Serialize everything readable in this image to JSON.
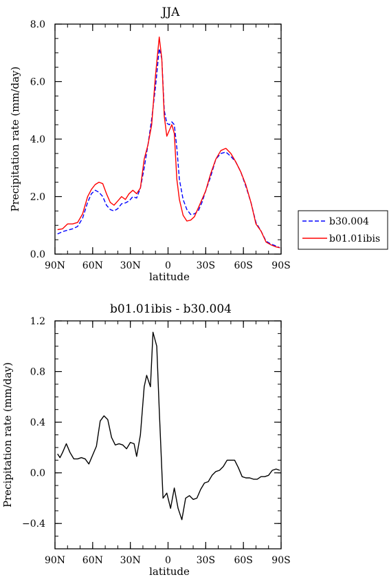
{
  "chart_data": [
    {
      "type": "line",
      "title": "JJA",
      "xlabel": "latitude",
      "ylabel": "Precipitation rate (mm/day)",
      "xlim": [
        90,
        -90
      ],
      "ylim": [
        0,
        8
      ],
      "x_ticks": [
        {
          "value": 90,
          "label": "90N"
        },
        {
          "value": 60,
          "label": "60N"
        },
        {
          "value": 30,
          "label": "30N"
        },
        {
          "value": 0,
          "label": "0"
        },
        {
          "value": -30,
          "label": "30S"
        },
        {
          "value": -60,
          "label": "60S"
        },
        {
          "value": -90,
          "label": "90S"
        }
      ],
      "y_ticks": [
        {
          "value": 0,
          "label": "0.0"
        },
        {
          "value": 2,
          "label": "2.0"
        },
        {
          "value": 4,
          "label": "4.0"
        },
        {
          "value": 6,
          "label": "6.0"
        },
        {
          "value": 8,
          "label": "8.0"
        }
      ],
      "legend": "right",
      "series": [
        {
          "name": "b30.004",
          "color": "#0000ff",
          "style": "dashed",
          "points": [
            [
              88,
              0.7
            ],
            [
              84,
              0.78
            ],
            [
              80,
              0.83
            ],
            [
              76,
              0.88
            ],
            [
              72,
              0.96
            ],
            [
              68,
              1.25
            ],
            [
              64,
              1.8
            ],
            [
              61,
              2.1
            ],
            [
              58,
              2.22
            ],
            [
              55,
              2.15
            ],
            [
              52,
              2.0
            ],
            [
              49,
              1.7
            ],
            [
              46,
              1.55
            ],
            [
              43,
              1.5
            ],
            [
              40,
              1.58
            ],
            [
              37,
              1.75
            ],
            [
              34,
              1.78
            ],
            [
              31,
              1.85
            ],
            [
              28,
              2.0
            ],
            [
              25,
              1.95
            ],
            [
              22,
              2.3
            ],
            [
              19,
              3.0
            ],
            [
              16,
              3.8
            ],
            [
              13,
              4.7
            ],
            [
              10,
              5.8
            ],
            [
              7,
              7.15
            ],
            [
              5,
              6.8
            ],
            [
              3,
              5.0
            ],
            [
              1,
              4.55
            ],
            [
              -1,
              4.5
            ],
            [
              -3,
              4.6
            ],
            [
              -5,
              4.5
            ],
            [
              -7,
              3.7
            ],
            [
              -9,
              2.6
            ],
            [
              -12,
              1.9
            ],
            [
              -15,
              1.55
            ],
            [
              -18,
              1.38
            ],
            [
              -21,
              1.4
            ],
            [
              -24,
              1.5
            ],
            [
              -27,
              1.8
            ],
            [
              -30,
              2.2
            ],
            [
              -34,
              2.7
            ],
            [
              -38,
              3.3
            ],
            [
              -42,
              3.5
            ],
            [
              -46,
              3.55
            ],
            [
              -50,
              3.4
            ],
            [
              -54,
              3.2
            ],
            [
              -58,
              2.85
            ],
            [
              -62,
              2.35
            ],
            [
              -66,
              1.8
            ],
            [
              -70,
              1.1
            ],
            [
              -74,
              0.8
            ],
            [
              -78,
              0.45
            ],
            [
              -82,
              0.35
            ],
            [
              -86,
              0.28
            ],
            [
              -89,
              0.22
            ]
          ]
        },
        {
          "name": "b01.01ibis",
          "color": "#ff0000",
          "style": "solid",
          "points": [
            [
              88,
              0.85
            ],
            [
              84,
              0.88
            ],
            [
              80,
              1.05
            ],
            [
              76,
              1.05
            ],
            [
              72,
              1.1
            ],
            [
              68,
              1.4
            ],
            [
              64,
              2.0
            ],
            [
              61,
              2.25
            ],
            [
              58,
              2.42
            ],
            [
              55,
              2.5
            ],
            [
              52,
              2.45
            ],
            [
              49,
              2.1
            ],
            [
              46,
              1.8
            ],
            [
              43,
              1.7
            ],
            [
              40,
              1.85
            ],
            [
              37,
              2.0
            ],
            [
              34,
              1.9
            ],
            [
              31,
              2.1
            ],
            [
              28,
              2.22
            ],
            [
              25,
              2.1
            ],
            [
              22,
              2.3
            ],
            [
              19,
              3.3
            ],
            [
              16,
              3.8
            ],
            [
              13,
              4.5
            ],
            [
              10,
              6.2
            ],
            [
              7,
              7.55
            ],
            [
              5,
              6.8
            ],
            [
              3,
              4.8
            ],
            [
              1,
              4.1
            ],
            [
              -1,
              4.3
            ],
            [
              -3,
              4.5
            ],
            [
              -5,
              4.2
            ],
            [
              -7,
              2.6
            ],
            [
              -9,
              1.9
            ],
            [
              -12,
              1.35
            ],
            [
              -15,
              1.15
            ],
            [
              -18,
              1.18
            ],
            [
              -21,
              1.3
            ],
            [
              -24,
              1.6
            ],
            [
              -27,
              1.9
            ],
            [
              -30,
              2.2
            ],
            [
              -34,
              2.8
            ],
            [
              -38,
              3.3
            ],
            [
              -42,
              3.6
            ],
            [
              -46,
              3.68
            ],
            [
              -50,
              3.5
            ],
            [
              -54,
              3.2
            ],
            [
              -58,
              2.85
            ],
            [
              -62,
              2.4
            ],
            [
              -66,
              1.8
            ],
            [
              -70,
              1.05
            ],
            [
              -74,
              0.8
            ],
            [
              -78,
              0.42
            ],
            [
              -82,
              0.32
            ],
            [
              -86,
              0.25
            ],
            [
              -89,
              0.22
            ]
          ]
        }
      ]
    },
    {
      "type": "line",
      "title": "b01.01ibis - b30.004",
      "xlabel": "latitude",
      "ylabel": "Precipitation rate (mm/day)",
      "xlim": [
        90,
        -90
      ],
      "ylim": [
        -0.6,
        1.2
      ],
      "x_ticks": [
        {
          "value": 90,
          "label": "90N"
        },
        {
          "value": 60,
          "label": "60N"
        },
        {
          "value": 30,
          "label": "30N"
        },
        {
          "value": 0,
          "label": "0"
        },
        {
          "value": -30,
          "label": "30S"
        },
        {
          "value": -60,
          "label": "60S"
        },
        {
          "value": -90,
          "label": "90S"
        }
      ],
      "y_ticks": [
        {
          "value": -0.4,
          "label": "−0.4"
        },
        {
          "value": 0,
          "label": "0.0"
        },
        {
          "value": 0.4,
          "label": "0.4"
        },
        {
          "value": 0.8,
          "label": "0.8"
        },
        {
          "value": 1.2,
          "label": "1.2"
        }
      ],
      "series": [
        {
          "color": "#000000",
          "style": "solid",
          "points": [
            [
              88,
              0.15
            ],
            [
              86,
              0.12
            ],
            [
              84,
              0.16
            ],
            [
              81,
              0.23
            ],
            [
              78,
              0.16
            ],
            [
              75,
              0.11
            ],
            [
              72,
              0.11
            ],
            [
              69,
              0.12
            ],
            [
              66,
              0.11
            ],
            [
              63,
              0.07
            ],
            [
              60,
              0.14
            ],
            [
              57,
              0.21
            ],
            [
              54,
              0.41
            ],
            [
              51,
              0.45
            ],
            [
              48,
              0.42
            ],
            [
              45,
              0.28
            ],
            [
              42,
              0.22
            ],
            [
              39,
              0.23
            ],
            [
              36,
              0.22
            ],
            [
              33,
              0.19
            ],
            [
              30,
              0.24
            ],
            [
              27,
              0.23
            ],
            [
              25,
              0.13
            ],
            [
              22,
              0.3
            ],
            [
              19,
              0.68
            ],
            [
              17,
              0.77
            ],
            [
              14,
              0.68
            ],
            [
              12,
              1.11
            ],
            [
              9,
              1.0
            ],
            [
              7,
              0.5
            ],
            [
              4,
              -0.2
            ],
            [
              1,
              -0.16
            ],
            [
              -2,
              -0.28
            ],
            [
              -5,
              -0.12
            ],
            [
              -8,
              -0.28
            ],
            [
              -11,
              -0.37
            ],
            [
              -14,
              -0.2
            ],
            [
              -17,
              -0.18
            ],
            [
              -20,
              -0.21
            ],
            [
              -23,
              -0.2
            ],
            [
              -26,
              -0.13
            ],
            [
              -29,
              -0.08
            ],
            [
              -32,
              -0.07
            ],
            [
              -35,
              -0.02
            ],
            [
              -38,
              0.01
            ],
            [
              -41,
              0.02
            ],
            [
              -44,
              0.05
            ],
            [
              -47,
              0.1
            ],
            [
              -50,
              0.1
            ],
            [
              -53,
              0.1
            ],
            [
              -56,
              0.04
            ],
            [
              -59,
              -0.03
            ],
            [
              -62,
              -0.04
            ],
            [
              -65,
              -0.04
            ],
            [
              -68,
              -0.05
            ],
            [
              -71,
              -0.05
            ],
            [
              -74,
              -0.03
            ],
            [
              -77,
              -0.03
            ],
            [
              -80,
              -0.02
            ],
            [
              -83,
              0.02
            ],
            [
              -86,
              0.03
            ],
            [
              -89,
              0.02
            ]
          ]
        }
      ]
    }
  ]
}
